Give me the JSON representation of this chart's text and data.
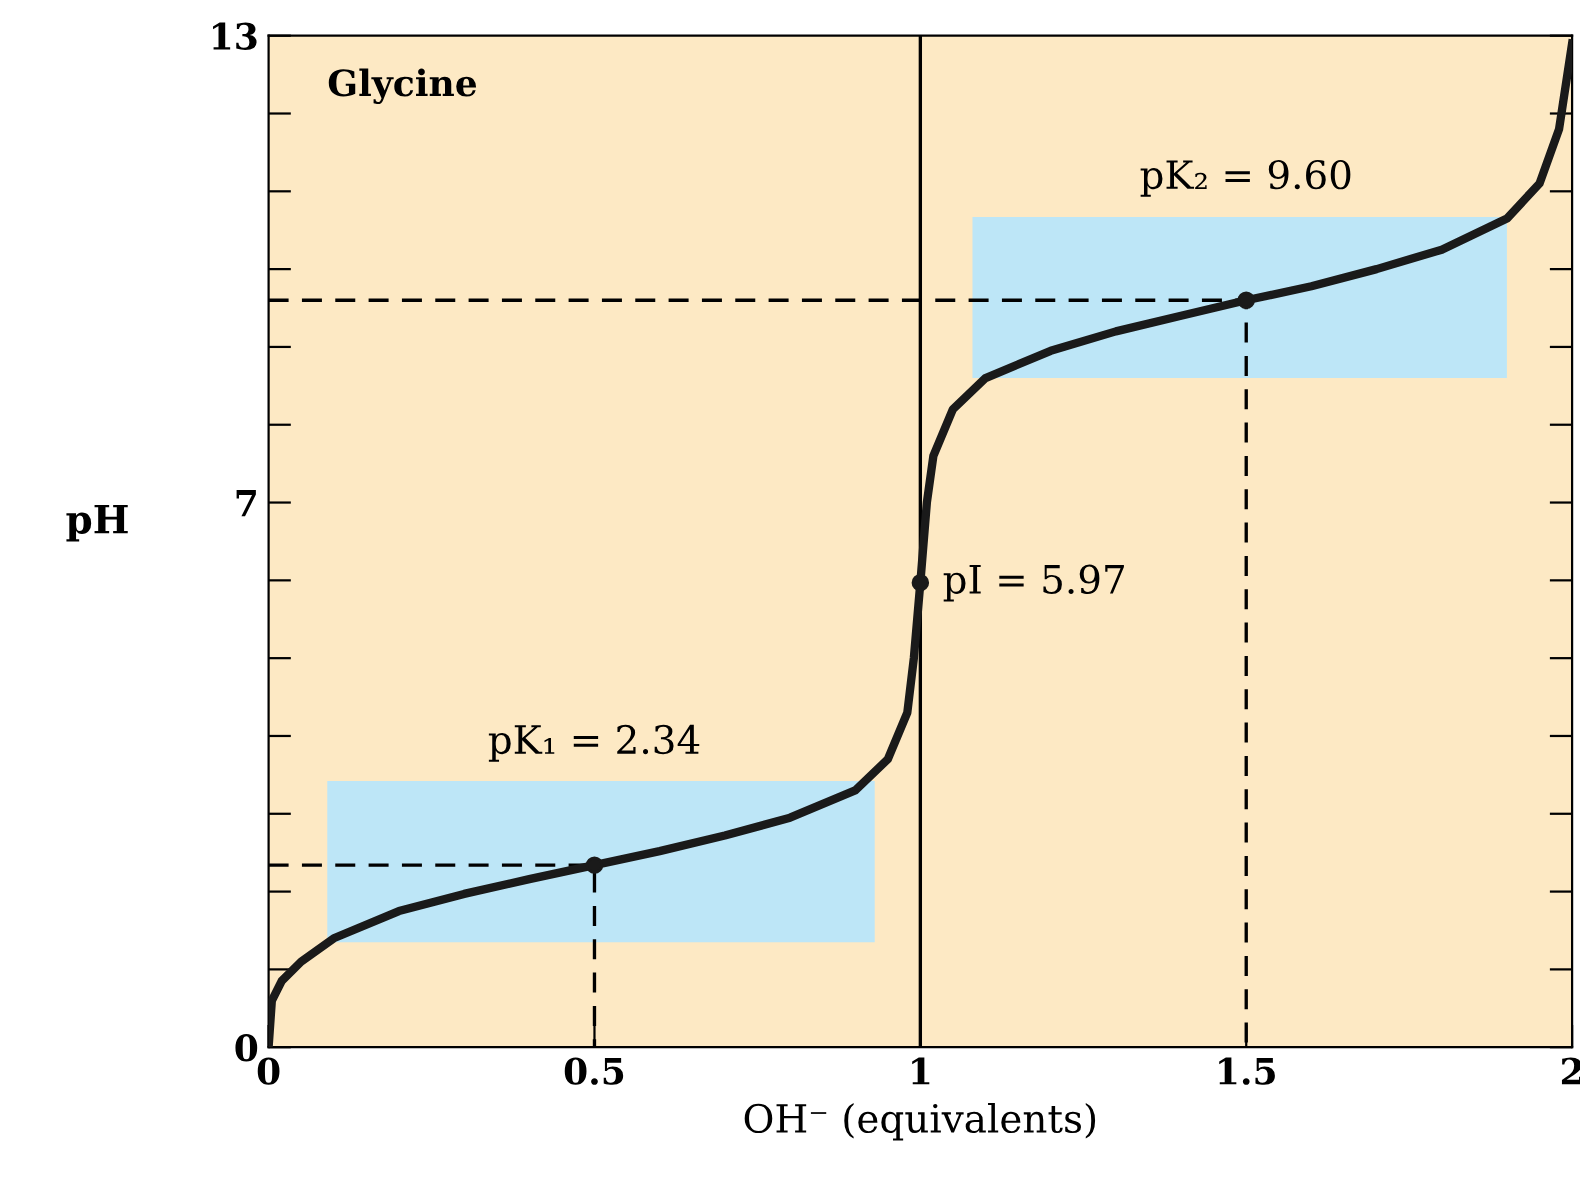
{
  "chart_data": {
    "type": "line",
    "xlabel": "OH⁻ (equivalents)",
    "ylabel": "pH",
    "xlim": [
      0,
      2
    ],
    "xticks": [
      0,
      0.5,
      1,
      1.5,
      2
    ],
    "ylim": [
      0,
      13
    ],
    "yticks": [
      0,
      {
        "value": 1,
        "label": null
      },
      {
        "value": 2,
        "label": null
      },
      {
        "value": 3,
        "label": null
      },
      {
        "value": 4,
        "label": null
      },
      {
        "value": 5,
        "label": null
      },
      {
        "value": 6,
        "label": null
      },
      7,
      {
        "value": 8,
        "label": null
      },
      {
        "value": 9,
        "label": null
      },
      {
        "value": 10,
        "label": null
      },
      {
        "value": 11,
        "label": null
      },
      {
        "value": 12,
        "label": null
      },
      13
    ],
    "grid": false,
    "legend": false,
    "series": [
      {
        "type": "histogram",
        "color": "#bde6f7",
        "bins": [
          0.09,
          0.93
        ],
        "base": [
          1.35
        ],
        "values": [
          2.07
        ]
      },
      {
        "type": "histogram",
        "color": "#bde6f7",
        "bins": [
          1.08,
          1.9
        ],
        "base": [
          8.6
        ],
        "values": [
          2.07
        ]
      },
      {
        "color": "#000000",
        "line_style": "dashed",
        "x": [
          0,
          0.5,
          0.5
        ],
        "values": [
          2.34,
          2.34,
          0
        ]
      },
      {
        "color": "#000000",
        "line_style": "dashed",
        "x": [
          0,
          1.5,
          1.5
        ],
        "values": [
          9.6,
          9.6,
          0
        ]
      },
      {
        "color": "#1a1a1a",
        "line_style": "solid",
        "x": [
          0,
          0.005,
          0.02,
          0.05,
          0.1,
          0.2,
          0.3,
          0.4,
          0.5,
          0.6,
          0.7,
          0.8,
          0.9,
          0.95,
          0.98,
          0.99,
          1.0,
          1.01,
          1.02,
          1.05,
          1.1,
          1.2,
          1.3,
          1.4,
          1.5,
          1.6,
          1.7,
          1.8,
          1.9,
          1.95,
          1.98,
          2.0
        ],
        "values": [
          0,
          0.6,
          0.85,
          1.1,
          1.4,
          1.75,
          1.97,
          2.16,
          2.34,
          2.52,
          2.72,
          2.95,
          3.3,
          3.7,
          4.3,
          5.0,
          5.97,
          7.0,
          7.6,
          8.2,
          8.6,
          8.95,
          9.2,
          9.4,
          9.6,
          9.78,
          10.0,
          10.25,
          10.65,
          11.1,
          11.8,
          12.9
        ]
      },
      {
        "type": "scatter",
        "color": "#1a1a1a",
        "marker": "circle",
        "x": [
          0.5,
          1.0,
          1.5
        ],
        "values": [
          2.34,
          5.97,
          9.6
        ]
      }
    ],
    "ref_lines": [
      {
        "axis": "x",
        "value": 1,
        "color": "#000000",
        "line_style": "solid"
      }
    ],
    "annotations": [
      "Glycine",
      {
        "text": "pK₁ = 2.34",
        "x": 0.5,
        "y": 2.34
      },
      {
        "text": "pI = 5.97",
        "x": 1.0,
        "y": 5.97
      },
      {
        "text": "pK₂ = 9.60",
        "x": 1.5,
        "y": 9.6
      }
    ]
  }
}
